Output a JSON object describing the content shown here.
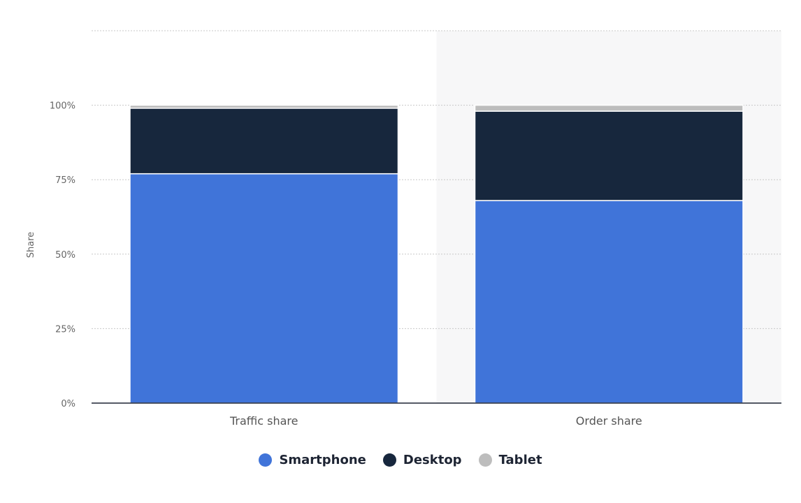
{
  "chart_data": {
    "type": "bar",
    "stacked": true,
    "title": "",
    "xlabel": "",
    "ylabel": "Share",
    "ylim": [
      0,
      125
    ],
    "yticks": [
      0,
      25,
      50,
      75,
      100
    ],
    "ytick_labels": [
      "0%",
      "25%",
      "50%",
      "75%",
      "100%"
    ],
    "categories": [
      "Traffic share",
      "Order share"
    ],
    "series": [
      {
        "name": "Smartphone",
        "color": "#4074d9",
        "values": [
          77,
          68
        ]
      },
      {
        "name": "Desktop",
        "color": "#17273d",
        "values": [
          22,
          30
        ]
      },
      {
        "name": "Tablet",
        "color": "#bdbdbd",
        "values": [
          1,
          2
        ]
      }
    ],
    "grid": true,
    "legend_position": "bottom-center",
    "highlighted_category": "Order share"
  }
}
